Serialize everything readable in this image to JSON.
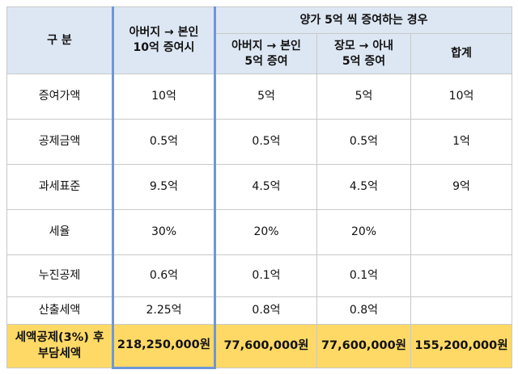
{
  "header": {
    "category": "구 분",
    "father_full": "아버지 → 본인\n10억 증여시",
    "split_group": "양가 5억 씩 증여하는 경우",
    "father_half": "아버지 → 본인\n5억 증여",
    "fatherinlaw_half": "장모 → 아내\n5억 증여",
    "total": "합계"
  },
  "rows": [
    {
      "label": "증여가액",
      "a": "10억",
      "b": "5억",
      "c": "5억",
      "d": "10억"
    },
    {
      "label": "공제금액",
      "a": "0.5억",
      "b": "0.5억",
      "c": "0.5억",
      "d": "1억"
    },
    {
      "label": "과세표준",
      "a": "9.5억",
      "b": "4.5억",
      "c": "4.5억",
      "d": "9억"
    },
    {
      "label": "세율",
      "a": "30%",
      "b": "20%",
      "c": "20%",
      "d": ""
    },
    {
      "label": "누진공제",
      "a": "0.6억",
      "b": "0.1억",
      "c": "0.1억",
      "d": ""
    },
    {
      "label": "산출세액",
      "a": "2.25억",
      "b": "0.8억",
      "c": "0.8억",
      "d": ""
    }
  ],
  "footer": {
    "label": "세액공제(3%) 후\n부담세액",
    "a": "218,250,000원",
    "b": "77,600,000원",
    "c": "77,600,000원",
    "d": "155,200,000원"
  },
  "colors": {
    "header_bg": "#dde7f4",
    "footer_bg": "#ffd966",
    "frame_blue": "#6d98d8"
  }
}
